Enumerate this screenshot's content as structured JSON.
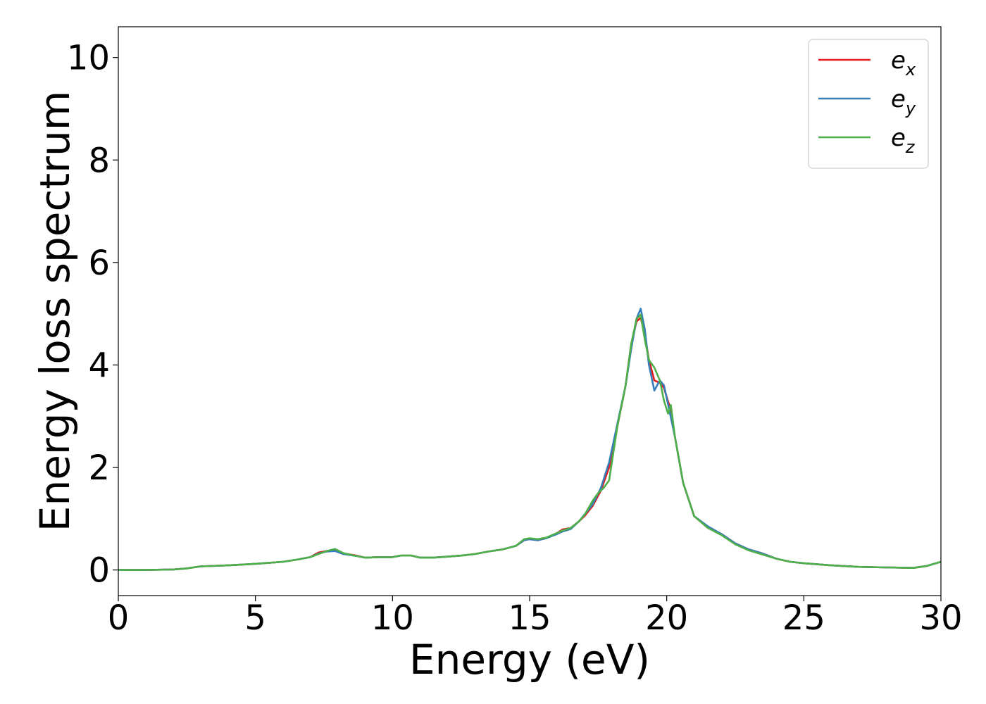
{
  "chart_data": {
    "type": "line",
    "title": "",
    "xlabel": "Energy (eV)",
    "ylabel": "Energy loss spectrum",
    "xlim": [
      0,
      30
    ],
    "ylim": [
      -0.5,
      10.6
    ],
    "xticks": [
      0,
      5,
      10,
      15,
      20,
      25,
      30
    ],
    "yticks": [
      0,
      2,
      4,
      6,
      8,
      10
    ],
    "grid": false,
    "legend_position": "top-right",
    "series": [
      {
        "name": "e",
        "subscript": "x",
        "color": "#e41a1c",
        "points": [
          [
            0,
            0
          ],
          [
            1,
            0
          ],
          [
            2,
            0.01
          ],
          [
            2.5,
            0.03
          ],
          [
            3,
            0.07
          ],
          [
            4,
            0.09
          ],
          [
            5,
            0.12
          ],
          [
            6,
            0.16
          ],
          [
            6.5,
            0.2
          ],
          [
            7,
            0.25
          ],
          [
            7.3,
            0.34
          ],
          [
            7.6,
            0.37
          ],
          [
            7.9,
            0.38
          ],
          [
            8.2,
            0.32
          ],
          [
            8.6,
            0.29
          ],
          [
            9,
            0.24
          ],
          [
            9.5,
            0.25
          ],
          [
            10,
            0.25
          ],
          [
            10.3,
            0.28
          ],
          [
            10.7,
            0.28
          ],
          [
            11,
            0.24
          ],
          [
            11.5,
            0.24
          ],
          [
            12,
            0.26
          ],
          [
            12.5,
            0.28
          ],
          [
            13,
            0.31
          ],
          [
            13.5,
            0.36
          ],
          [
            14,
            0.4
          ],
          [
            14.5,
            0.47
          ],
          [
            14.8,
            0.58
          ],
          [
            15,
            0.6
          ],
          [
            15.3,
            0.58
          ],
          [
            15.6,
            0.62
          ],
          [
            16,
            0.72
          ],
          [
            16.2,
            0.79
          ],
          [
            16.5,
            0.82
          ],
          [
            16.8,
            0.95
          ],
          [
            17,
            1.05
          ],
          [
            17.3,
            1.25
          ],
          [
            17.6,
            1.55
          ],
          [
            17.9,
            2.0
          ],
          [
            18.2,
            2.8
          ],
          [
            18.5,
            3.6
          ],
          [
            18.7,
            4.4
          ],
          [
            18.9,
            4.85
          ],
          [
            19.05,
            4.92
          ],
          [
            19.2,
            4.6
          ],
          [
            19.35,
            4.1
          ],
          [
            19.55,
            3.7
          ],
          [
            19.75,
            3.65
          ],
          [
            19.9,
            3.55
          ],
          [
            20.1,
            3.2
          ],
          [
            20.3,
            2.6
          ],
          [
            20.6,
            1.7
          ],
          [
            21,
            1.05
          ],
          [
            21.5,
            0.82
          ],
          [
            22,
            0.7
          ],
          [
            22.5,
            0.52
          ],
          [
            23,
            0.4
          ],
          [
            23.5,
            0.32
          ],
          [
            24,
            0.22
          ],
          [
            24.5,
            0.16
          ],
          [
            25,
            0.13
          ],
          [
            26,
            0.09
          ],
          [
            27,
            0.06
          ],
          [
            28,
            0.05
          ],
          [
            29,
            0.04
          ],
          [
            29.5,
            0.08
          ],
          [
            30,
            0.16
          ]
        ]
      },
      {
        "name": "e",
        "subscript": "y",
        "color": "#377eb8",
        "points": [
          [
            0,
            0
          ],
          [
            1,
            0
          ],
          [
            2,
            0.01
          ],
          [
            2.5,
            0.03
          ],
          [
            3,
            0.07
          ],
          [
            4,
            0.09
          ],
          [
            5,
            0.12
          ],
          [
            6,
            0.16
          ],
          [
            6.5,
            0.2
          ],
          [
            7,
            0.25
          ],
          [
            7.3,
            0.32
          ],
          [
            7.6,
            0.36
          ],
          [
            7.9,
            0.37
          ],
          [
            8.2,
            0.31
          ],
          [
            8.6,
            0.28
          ],
          [
            9,
            0.24
          ],
          [
            9.5,
            0.25
          ],
          [
            10,
            0.25
          ],
          [
            10.3,
            0.28
          ],
          [
            10.7,
            0.28
          ],
          [
            11,
            0.24
          ],
          [
            11.5,
            0.24
          ],
          [
            12,
            0.26
          ],
          [
            12.5,
            0.28
          ],
          [
            13,
            0.31
          ],
          [
            13.5,
            0.36
          ],
          [
            14,
            0.4
          ],
          [
            14.5,
            0.47
          ],
          [
            14.8,
            0.58
          ],
          [
            15,
            0.6
          ],
          [
            15.3,
            0.58
          ],
          [
            15.6,
            0.62
          ],
          [
            16,
            0.7
          ],
          [
            16.2,
            0.75
          ],
          [
            16.5,
            0.8
          ],
          [
            16.8,
            0.95
          ],
          [
            17,
            1.08
          ],
          [
            17.3,
            1.28
          ],
          [
            17.6,
            1.6
          ],
          [
            17.9,
            2.1
          ],
          [
            18.2,
            2.85
          ],
          [
            18.5,
            3.6
          ],
          [
            18.7,
            4.3
          ],
          [
            18.9,
            4.9
          ],
          [
            19.05,
            5.1
          ],
          [
            19.2,
            4.7
          ],
          [
            19.35,
            4.0
          ],
          [
            19.55,
            3.5
          ],
          [
            19.75,
            3.7
          ],
          [
            19.9,
            3.6
          ],
          [
            20.1,
            3.1
          ],
          [
            20.3,
            2.6
          ],
          [
            20.6,
            1.7
          ],
          [
            21,
            1.05
          ],
          [
            21.5,
            0.85
          ],
          [
            22,
            0.7
          ],
          [
            22.5,
            0.52
          ],
          [
            23,
            0.4
          ],
          [
            23.5,
            0.32
          ],
          [
            24,
            0.22
          ],
          [
            24.5,
            0.16
          ],
          [
            25,
            0.13
          ],
          [
            26,
            0.09
          ],
          [
            27,
            0.06
          ],
          [
            28,
            0.05
          ],
          [
            29,
            0.04
          ],
          [
            29.5,
            0.08
          ],
          [
            30,
            0.16
          ]
        ]
      },
      {
        "name": "e",
        "subscript": "z",
        "color": "#4daf4a",
        "points": [
          [
            0,
            0
          ],
          [
            1,
            0
          ],
          [
            2,
            0.01
          ],
          [
            2.5,
            0.03
          ],
          [
            3,
            0.07
          ],
          [
            4,
            0.09
          ],
          [
            5,
            0.12
          ],
          [
            6,
            0.16
          ],
          [
            6.5,
            0.2
          ],
          [
            7,
            0.25
          ],
          [
            7.3,
            0.31
          ],
          [
            7.6,
            0.37
          ],
          [
            7.9,
            0.41
          ],
          [
            8.2,
            0.33
          ],
          [
            8.6,
            0.28
          ],
          [
            9,
            0.24
          ],
          [
            9.5,
            0.25
          ],
          [
            10,
            0.25
          ],
          [
            10.3,
            0.28
          ],
          [
            10.7,
            0.28
          ],
          [
            11,
            0.24
          ],
          [
            11.5,
            0.24
          ],
          [
            12,
            0.26
          ],
          [
            12.5,
            0.28
          ],
          [
            13,
            0.31
          ],
          [
            13.5,
            0.36
          ],
          [
            14,
            0.4
          ],
          [
            14.5,
            0.47
          ],
          [
            14.8,
            0.6
          ],
          [
            15,
            0.62
          ],
          [
            15.3,
            0.6
          ],
          [
            15.6,
            0.63
          ],
          [
            16,
            0.72
          ],
          [
            16.2,
            0.77
          ],
          [
            16.5,
            0.82
          ],
          [
            16.8,
            0.95
          ],
          [
            17,
            1.07
          ],
          [
            17.3,
            1.35
          ],
          [
            17.5,
            1.5
          ],
          [
            17.7,
            1.6
          ],
          [
            17.9,
            1.75
          ],
          [
            18.2,
            2.8
          ],
          [
            18.5,
            3.6
          ],
          [
            18.7,
            4.4
          ],
          [
            18.9,
            4.9
          ],
          [
            19.05,
            4.98
          ],
          [
            19.2,
            4.5
          ],
          [
            19.35,
            4.1
          ],
          [
            19.55,
            3.95
          ],
          [
            19.75,
            3.7
          ],
          [
            19.9,
            3.3
          ],
          [
            20.05,
            3.05
          ],
          [
            20.15,
            3.22
          ],
          [
            20.3,
            2.6
          ],
          [
            20.6,
            1.7
          ],
          [
            21,
            1.05
          ],
          [
            21.5,
            0.82
          ],
          [
            22,
            0.68
          ],
          [
            22.5,
            0.5
          ],
          [
            23,
            0.38
          ],
          [
            23.5,
            0.3
          ],
          [
            24,
            0.22
          ],
          [
            24.5,
            0.16
          ],
          [
            25,
            0.13
          ],
          [
            26,
            0.09
          ],
          [
            27,
            0.06
          ],
          [
            28,
            0.05
          ],
          [
            29,
            0.04
          ],
          [
            29.5,
            0.08
          ],
          [
            30,
            0.16
          ]
        ]
      }
    ]
  }
}
